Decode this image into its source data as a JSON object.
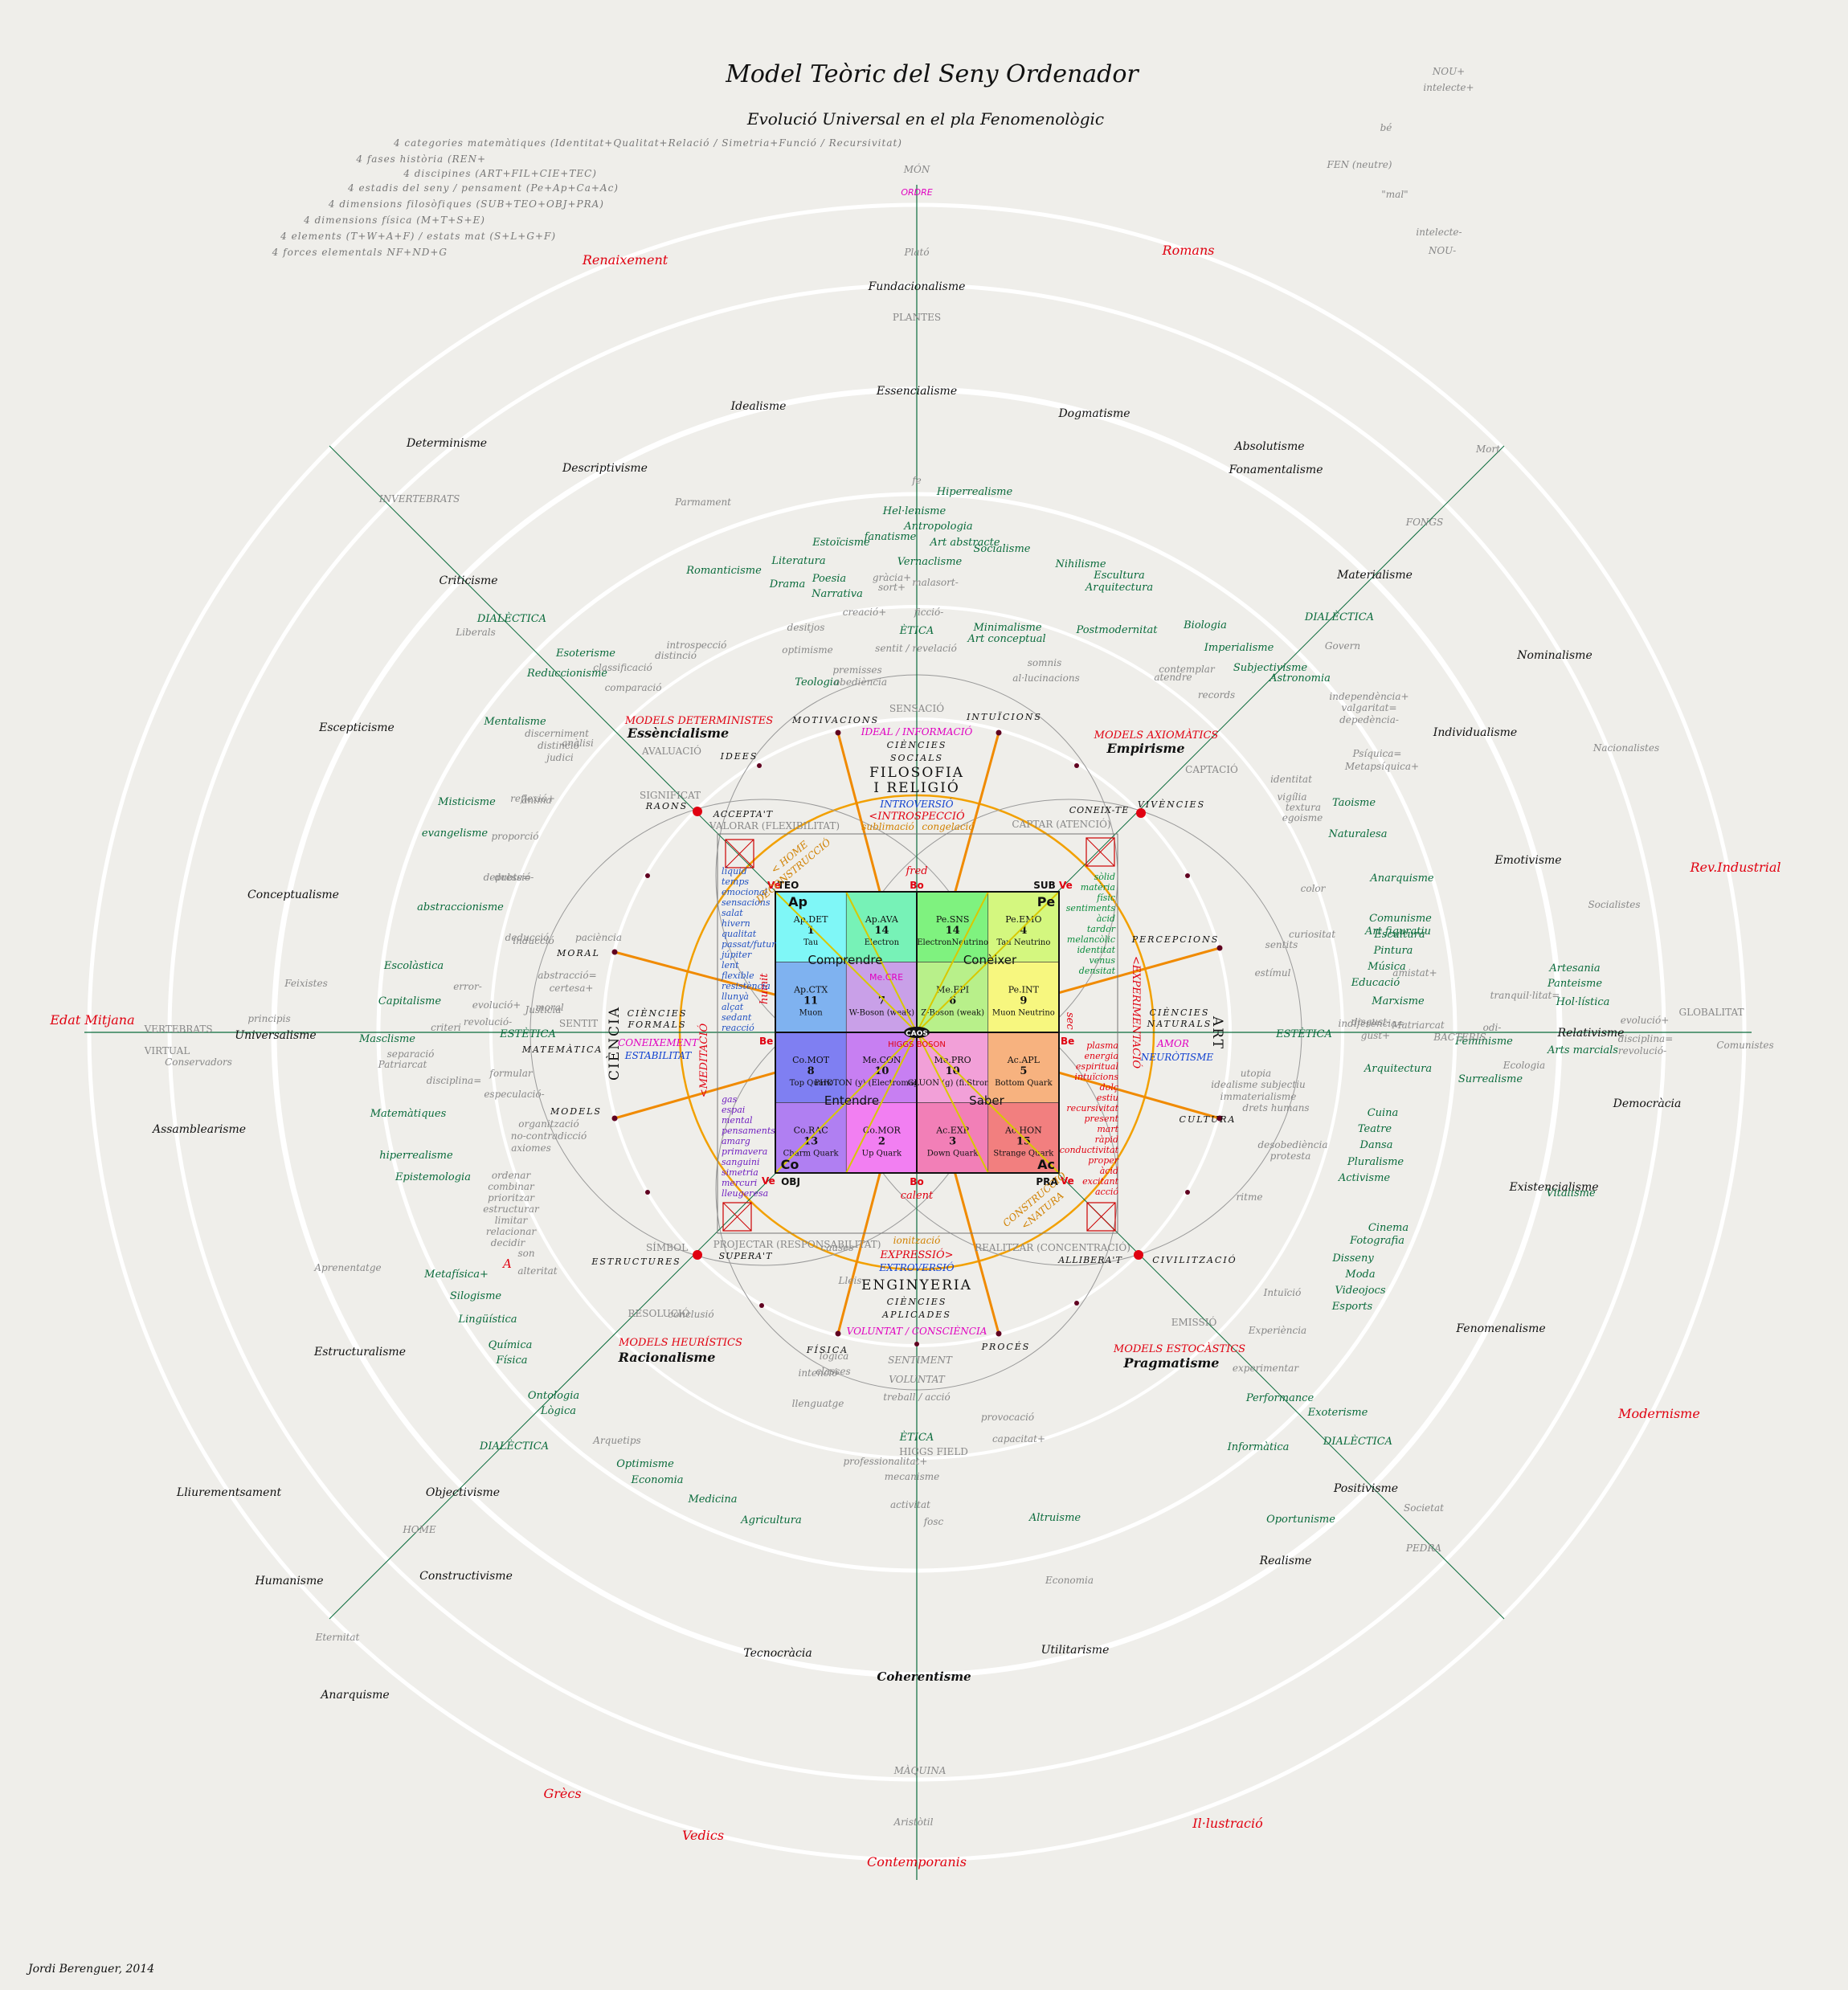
{
  "header": {
    "title": "Model Teòric del Seny Ordenador",
    "subtitle": "Evolució Universal en el pla Fenomenològic",
    "notes": [
      "4 categories matemàtiques (Identitat+Qualitat+Relació / Simetria+Funció / Recursivitat)",
      "4 fases història (REN+",
      "4 discipines (ART+FIL+CIE+TEC)",
      "4 estadis del seny / pensament (Pe+Ap+Ca+Ac)",
      "4 dimensions filosòfiques (SUB+TEO+OBJ+PRA)",
      "4 dimensions física (M+T+S+E)",
      "4 elements (T+W+A+F) / estats mat (S+L+G+F)",
      "4 forces elementals NF+ND+G"
    ]
  },
  "author": "Jordi Berenguer, 2014",
  "colors": {
    "background": "#efeeea",
    "ring": "#ffffff",
    "axis": "#0a6b3c",
    "orange": "#f08a00",
    "red": "#e00010",
    "green_text": "#0a6b3c"
  },
  "axes": {
    "top": [
      "MÓN",
      "ORDRE",
      "Plató",
      "Fundacionalisme",
      "PLANTES",
      "Essencialisme"
    ],
    "bottom": [
      "Coherentisme",
      "MÀQUINA",
      "Aristòtil",
      "Contemporanis"
    ],
    "left": [
      "Edat Mitjana",
      "VERTEBRATS",
      "VIRTUAL",
      "Universalisme",
      "principis"
    ],
    "right": [
      "Relativisme",
      "GLOBALITAT",
      "Comunistes"
    ]
  },
  "eras": [
    "Renaixement",
    "Romans",
    "Edat Mitjana",
    "Rev.Industrial",
    "Modernisme",
    "Il·lustració",
    "Contemporanis",
    "Vedics",
    "Grècs"
  ],
  "philosophies": [
    "Idealisme",
    "Dogmatisme",
    "Determinisme",
    "Absolutisme",
    "Fonamentalisme",
    "Descriptivisme",
    "Materialisme",
    "Criticisme",
    "Nominalisme",
    "Escepticisme",
    "Individualisme",
    "Conceptualisme",
    "Emotivisme",
    "Assamblearisme",
    "Democràcia",
    "Existencialisme",
    "Estructuralisme",
    "Fenomenalisme",
    "Lliurementsament",
    "Objectivisme",
    "Positivisme",
    "Humanisme",
    "Constructivisme",
    "Realisme",
    "Anarquisme",
    "Tecnocràcia",
    "Utilitarisme"
  ],
  "green_terms": [
    "Hiperrealisme",
    "Hel·lenisme",
    "Antropologia",
    "fanatisme",
    "Art abstracte",
    "Socialisme",
    "Estoïcisme",
    "Literatura",
    "Vernaclisme",
    "Romanticisme",
    "Drama",
    "Poesia",
    "Narrativa",
    "Nihilisme",
    "Escultura",
    "Arquitectura",
    "Minimalisme",
    "Art conceptual",
    "Postmodernitat",
    "Biologia",
    "Imperialisme",
    "Subjectivisme",
    "Astronomia",
    "Esoterisme",
    "Reduccionisme",
    "Teologia",
    "Mentalisme",
    "Misticisme",
    "evangelisme",
    "abstraccionisme",
    "Taoisme",
    "Naturalesa",
    "Anarquisme",
    "Comunisme",
    "Art figuratiu",
    "Escultura",
    "Pintura",
    "Música",
    "Educació",
    "Marxisme",
    "Artesania",
    "Panteisme",
    "Hol·lística",
    "Feminisme",
    "Arts marcials",
    "Surrealisme",
    "Escolàstica",
    "Capitalisme",
    "Masclisme",
    "Matemàtiques",
    "hiperrealisme",
    "Epistemologia",
    "Arquitectura",
    "Cuina",
    "Teatre",
    "Dansa",
    "Pluralisme",
    "Activisme",
    "Vitalisme",
    "Cinema",
    "Fotografia",
    "Disseny",
    "Moda",
    "Videojocs",
    "Esports",
    "Metafísica+",
    "Silogisme",
    "Lingüística",
    "Química",
    "Física",
    "Ontologia",
    "Lògica",
    "Optimisme",
    "Economia",
    "Medicina",
    "Agricultura",
    "Altruisme",
    "Informàtica",
    "Performance",
    "Exoterisme",
    "Oportunisme"
  ],
  "dialectica": [
    "DIALÈCTICA",
    "DIALÈCTICA",
    "DIALÈCTICA",
    "DIALÈCTICA"
  ],
  "grey_terms": [
    "NOU+",
    "intelecte+",
    "bé",
    "FEN (neutre)",
    "\"mal\"",
    "intelecte-",
    "NOU-",
    "INVERTEBRATS",
    "Parmament",
    "Mort",
    "FONGS",
    "Liberals",
    "Govern",
    "independència+",
    "valgaritat=",
    "depedència-",
    "Nacionalistes",
    "Psíquica=",
    "Metapsíquica+",
    "Feixistes",
    "Socialistes",
    "Conservadors",
    "Patriarcat",
    "Matriarcat",
    "BACTERIS",
    "Ecologia",
    "Aprenentatge",
    "Eternitat",
    "HOME",
    "PEDRA",
    "Societat",
    "Economia",
    "Arquetips",
    "records",
    "contemplar",
    "atendre",
    "identitat",
    "vigília",
    "textura",
    "egoisme",
    "color",
    "curiositat",
    "sentits",
    "estímul",
    "ritme",
    "Intuïció",
    "Experiència",
    "experimentar",
    "provocació",
    "capacitat+",
    "treball / acció",
    "VOLUNTAT",
    "SENTIMENT",
    "intenció",
    "llenguatge",
    "causes",
    "Lleis",
    "conclusió",
    "lògica",
    "classes",
    "depressió-",
    "dubte=",
    "proporció",
    "ànima",
    "reflexió+",
    "anàlisi",
    "discerniment",
    "distinció",
    "judici",
    "deducció",
    "inducció",
    "paciència",
    "abstracció=",
    "certesa+",
    "error-",
    "evolució+",
    "revolució-",
    "criteri",
    "moral",
    "Justícia",
    "separació",
    "disciplina=",
    "formular",
    "especulació-",
    "organització",
    "no-contradicció",
    "axiomes",
    "ordenar",
    "combinar",
    "prioritzar",
    "estructurar",
    "limitar",
    "relacionar",
    "decidir",
    "son",
    "alteritat",
    "desobediència",
    "protesta",
    "utopia",
    "idealisme subjectiu",
    "immaterialisme",
    "drets humans",
    "amistat+",
    "tranquil·litat=",
    "odi-",
    "gust+",
    "indiferència=",
    "disgust-",
    "evolució+",
    "disciplina=",
    "revolució-",
    "introspecció",
    "distinció",
    "comparació",
    "classificació",
    "desitjos",
    "optimisme",
    "premisses",
    "obediència",
    "gràcia+",
    "sort+",
    "malasort-",
    "creació+",
    "ficció-",
    "sentit / revelació",
    "somnis",
    "al·lucinacions",
    "professionalitat+",
    "mecanisme",
    "activitat",
    "fosc",
    "absència-"
  ],
  "ring_labels": {
    "mid": [
      "SENSACIÓ",
      "AVALUACIÓ",
      "SIGNIFICAT",
      "CAPTACIÓ",
      "SENTIT",
      "SÍMBOL",
      "RESOLUCIÓ",
      "EMISSIÓ"
    ],
    "caps": [
      "MOTIVACIONS",
      "INTUÏCIONS",
      "IDEES",
      "VIVÈNCIES",
      "RAONS",
      "PERCEPCIONS",
      "MORAL",
      "CULTURA",
      "MODELS",
      "CIVILITZACIÓ",
      "ESTRUCTURES",
      "FÍSICA",
      "PROCÉS"
    ],
    "ethics": [
      "ÈTICA",
      "ÈTICA",
      "ESTÈTICA",
      "ESTÈTICA"
    ]
  },
  "disciplines": {
    "top": [
      "CIÈNCIES",
      "SOCIALS",
      "FILOSOFIA",
      "I RELIGIÓ"
    ],
    "bottom": [
      "ENGINYERIA",
      "CIÈNCIES",
      "APLICADES"
    ],
    "left": [
      "CIÈNCIA",
      "CIÈNCIES",
      "FORMALS",
      "MATEMÀTICA"
    ],
    "right": [
      "ART",
      "CIÈNCIES",
      "NATURALS"
    ]
  },
  "models": [
    {
      "label": "MODELS DETERMINISTES",
      "name": "Essèncialisme"
    },
    {
      "label": "MODELS AXIOMÀTICS",
      "name": "Empirisme"
    },
    {
      "label": "MODELS HEURÍSTICS",
      "name": "Racionalisme"
    },
    {
      "label": "MODELS ESTOCÀSTICS",
      "name": "Pragmatisme"
    }
  ],
  "modes": [
    "IDEAL / INFORMACIÓ",
    "INTROVERSIÓ",
    "<INTROSPECCIÓ",
    "VALORAR (FLEXIBILITAT)",
    "CAPTAR (ATENCIÓ)",
    "PROJECTAR (RESPONSABILITAT)",
    "REALITZAR (CONCENTRACIÓ)",
    "EXPRESSIÓ>",
    "EXTROVERSIÓ",
    "VOLUNTAT / CONSCIÈNCIA",
    "CONEIXEMENT",
    "ESTABILITAT",
    "AMOR",
    "NEURÒTISME",
    "<MEDITACIÓ",
    "<EXPERIMENTACIÓ",
    "< HOME",
    "DECONSTRUCCIÓ",
    "CONSTRUCCIÓ",
    "<NATURA",
    "HIGGS FIELD",
    "sublimació",
    "congelació",
    "ionització"
  ],
  "corners": [
    "ACCEPTA'T",
    "CONEIX-TE",
    "SUPERA'T",
    "ALLIBERA'T"
  ],
  "center": {
    "quadrant_labels": [
      "Comprendre",
      "Conèixer",
      "Entendre",
      "Saber"
    ],
    "corner_tags": [
      "Ap",
      "Pe",
      "Co",
      "Ac"
    ],
    "dimension_tags": [
      "TEO",
      "SUB",
      "OBJ",
      "PRA"
    ],
    "state_tags": [
      "Ve",
      "Bo",
      "Be"
    ],
    "temperature": [
      "fred",
      "calent"
    ],
    "moisture": [
      "humit",
      "sec"
    ],
    "core": "CAOS",
    "higgs": "HIGGS BOSON",
    "cells": [
      {
        "code": "Ap.DET",
        "n": "1",
        "p": "Tau",
        "color": "#7ff7f7"
      },
      {
        "code": "Ap.AVA",
        "n": "14",
        "p": "Electron",
        "color": "#77f2b7"
      },
      {
        "code": "Pe.SNS",
        "n": "14",
        "p": "ElectronNeutrino",
        "color": "#7ff27f"
      },
      {
        "code": "Pe.EMO",
        "n": "4",
        "p": "Tau Neutrino",
        "color": "#d4f77f"
      },
      {
        "code": "Ap.CTX",
        "n": "11",
        "p": "Muon",
        "color": "#7fb2f0"
      },
      {
        "code": "",
        "n": "7",
        "p": "W-Boson (weak)",
        "color": "#c9a0e8"
      },
      {
        "code": "Me.EPI",
        "n": "6",
        "p": "Z-Boson (weak)",
        "color": "#b8f08a"
      },
      {
        "code": "Pe.INT",
        "n": "9",
        "p": "Muon Neutrino",
        "color": "#f7f77f"
      },
      {
        "code": "Co.MOT",
        "n": "8",
        "p": "Top Quark",
        "color": "#7f7ff2"
      },
      {
        "code": "Me.CON",
        "n": "10",
        "p": "PHOTON (y) (Electromagnetism)",
        "color": "#c77ff2"
      },
      {
        "code": "Me.PRO",
        "n": "10",
        "p": "GLUON (g) (fi.Strong)",
        "color": "#f2a0d8"
      },
      {
        "code": "Ac.APL",
        "n": "5",
        "p": "Bottom Quark",
        "color": "#f7b27f"
      },
      {
        "code": "Co.RAC",
        "n": "13",
        "p": "Charm Quark",
        "color": "#b07ff2"
      },
      {
        "code": "Co.MOR",
        "n": "2",
        "p": "Up Quark",
        "color": "#f27ff2"
      },
      {
        "code": "Ac.EXP",
        "n": "3",
        "p": "Down Quark",
        "color": "#f27fb7"
      },
      {
        "code": "Ac.HON",
        "n": "15",
        "p": "Strange Quark",
        "color": "#f27f7f"
      }
    ],
    "center_magenta": [
      "Me.CRE",
      "Me.EPI"
    ],
    "left_list": [
      "líquid",
      "temps",
      "emocional",
      "sensacions",
      "salat",
      "hivern",
      "qualitat",
      "passat/futur",
      "júpiter",
      "lent",
      "flexible",
      "resistència",
      "llunyà",
      "alçat",
      "sedant",
      "reacció"
    ],
    "left_list2": [
      "gas",
      "espai",
      "mental",
      "pensaments",
      "amarg",
      "primavera",
      "sanguini",
      "simetria",
      "mercuri",
      "lleugeresa"
    ],
    "right_list": [
      "sòlid",
      "matèria",
      "físic",
      "sentiments",
      "àcid",
      "tardor",
      "melancòlic",
      "identitat",
      "venus",
      "densitat"
    ],
    "right_list2": [
      "plasma",
      "energia",
      "espiritual",
      "intuïcions",
      "dolç",
      "estiu",
      "recursivitat",
      "present",
      "mart",
      "ràpid",
      "conductivitat",
      "proper",
      "àcid",
      "excitant",
      "acció"
    ]
  },
  "misc": [
    "A",
    "fe"
  ]
}
